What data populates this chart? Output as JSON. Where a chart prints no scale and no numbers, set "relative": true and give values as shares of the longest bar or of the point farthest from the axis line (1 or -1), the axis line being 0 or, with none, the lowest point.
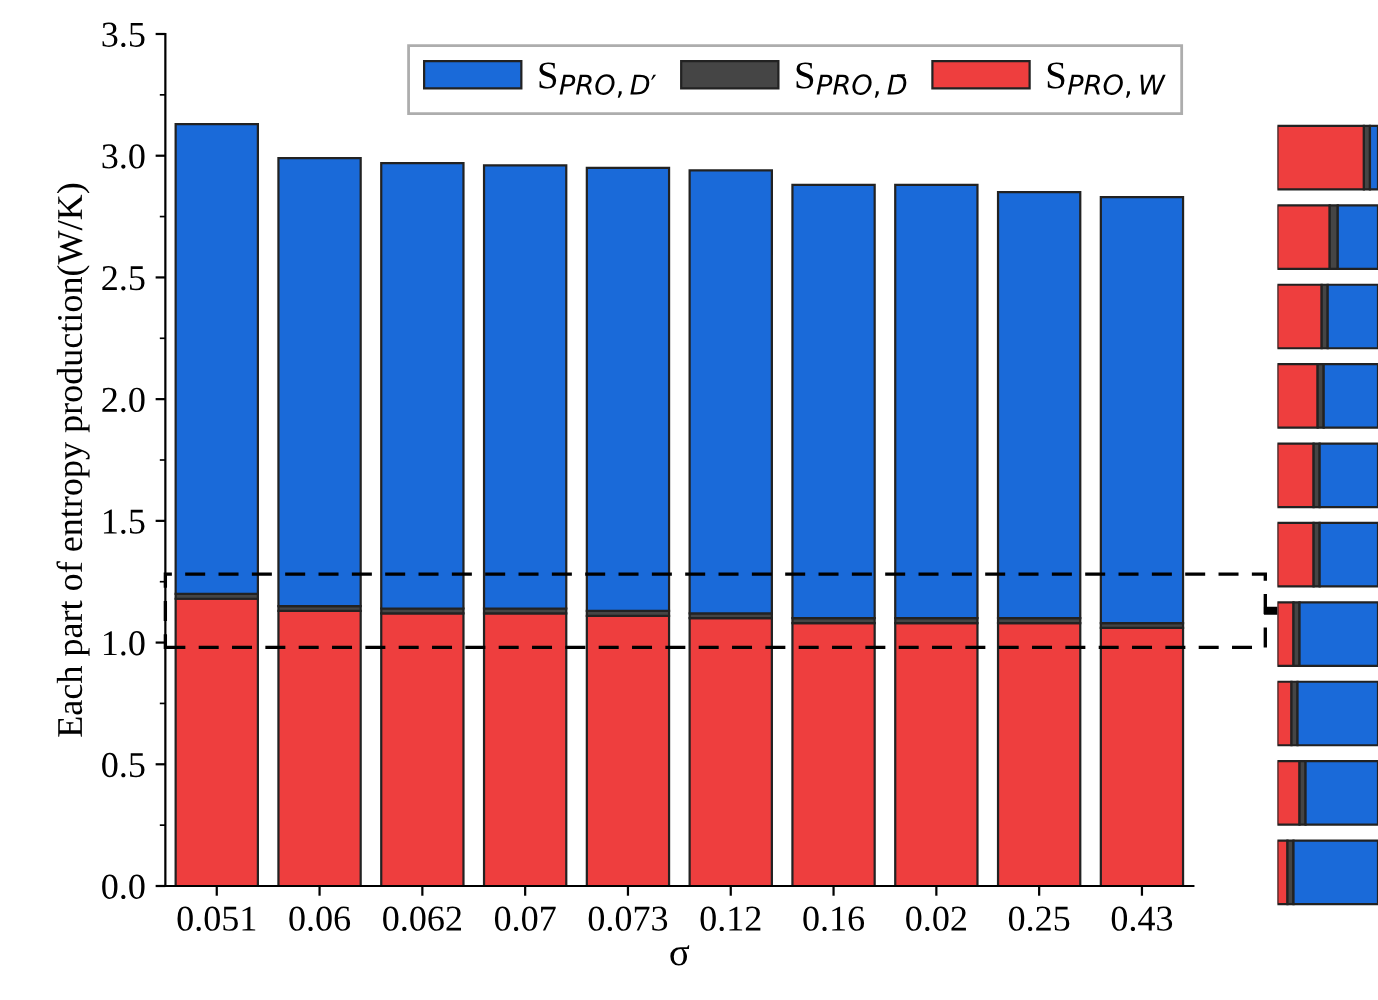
{
  "chart_data": [
    {
      "type": "bar",
      "stacked": true,
      "ylabel": "Each part of entropy production(W/K)",
      "xlabel": "σ",
      "categories": [
        "0.051",
        "0.06",
        "0.062",
        "0.07",
        "0.073",
        "0.12",
        "0.16",
        "0.02",
        "0.25",
        "0.43"
      ],
      "series": [
        {
          "name": "S$_{PRO,W}$",
          "color": "#ee3e3e",
          "values": [
            1.18,
            1.13,
            1.12,
            1.12,
            1.11,
            1.1,
            1.08,
            1.08,
            1.08,
            1.06
          ]
        },
        {
          "name": "S$_{PRO,D̄}$",
          "color": "#454545",
          "values": [
            0.02,
            0.02,
            0.02,
            0.02,
            0.02,
            0.02,
            0.02,
            0.02,
            0.02,
            0.02
          ]
        },
        {
          "name": "S$_{PRO,D′}$",
          "color": "#1a6ad9",
          "values": [
            1.93,
            1.84,
            1.83,
            1.82,
            1.82,
            1.82,
            1.78,
            1.78,
            1.75,
            1.75
          ]
        }
      ],
      "ylim": [
        0,
        3.5
      ],
      "yticks": [
        {
          "value": 0,
          "label": "0.0"
        },
        0.5,
        {
          "value": 1,
          "label": "1.0"
        },
        1.5,
        {
          "value": 2,
          "label": "2.0"
        },
        2.5,
        {
          "value": 3,
          "label": "3.0"
        },
        3.5
      ],
      "grid": false,
      "legend": "top right"
    },
    {
      "type": "bar",
      "orientation": "horizontal",
      "stacked": true,
      "relative": true,
      "tick_labels": false,
      "categories": [
        null,
        null,
        null,
        null,
        null,
        null,
        null,
        null,
        null,
        null
      ],
      "series": [
        {
          "color": "#ee3e3e",
          "values": [
            0.86,
            0.52,
            0.44,
            0.4,
            0.36,
            0.36,
            0.16,
            0.14,
            0.22,
            0.1
          ]
        },
        {
          "color": "#454545",
          "values": [
            0.06,
            0.08,
            0.06,
            0.06,
            0.06,
            0.06,
            0.06,
            0.06,
            0.06,
            0.06
          ]
        },
        {
          "color": "#1a6ad9",
          "values": [
            0.08,
            0.4,
            0.5,
            0.54,
            0.58,
            0.58,
            0.78,
            0.8,
            0.72,
            0.84
          ]
        }
      ]
    }
  ]
}
